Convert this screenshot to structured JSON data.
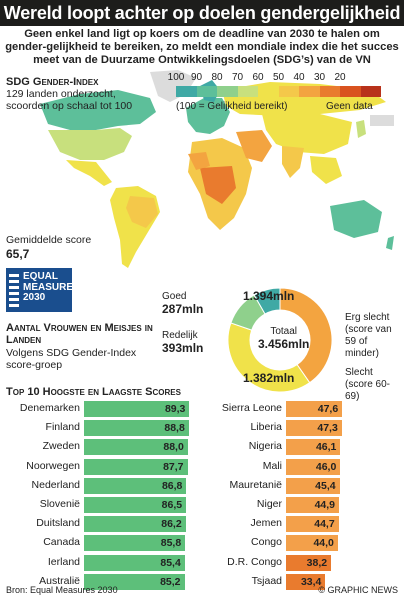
{
  "header": {
    "title": "Wereld loopt achter op doelen gendergelijkheid",
    "subtitle": "Geen enkel land ligt op koers om de deadline van 2030 te halen om gender-gelijkheid te bereiken, zo meldt een mondiale index die het succes meet van de Duurzame Ontwikkelingsdoelen (SDG’s) van de VN"
  },
  "map": {
    "heading": "SDG Gender-Index",
    "sub": "129 landen onderzocht, scoorden op schaal tot 100",
    "legend_ticks": [
      "100",
      "90",
      "80",
      "70",
      "60",
      "50",
      "40",
      "30",
      "20"
    ],
    "legend_colors": [
      "#3fa9a5",
      "#5dbf9a",
      "#8fd08c",
      "#c8e07d",
      "#f0e24a",
      "#f4c84a",
      "#f3a440",
      "#e97b2e",
      "#d9531f",
      "#b8321b"
    ],
    "legend_note": "(100 = Gelijkheid bereikt)",
    "nodata_label": "Geen data",
    "nodata_color": "#dcdcdc",
    "avg_label": "Gemiddelde score",
    "avg_value": "65,7"
  },
  "logo": {
    "line1": "EQUAL",
    "line2": "MEASURES",
    "line3": "2030"
  },
  "donut": {
    "heading": "Aantal Vrouwen en Meisjes in Landen",
    "sub": "Volgens SDG Gender-Index score-groep",
    "total_label": "Totaal",
    "total_value": "3.456mln",
    "segments": [
      {
        "label": "Erg slecht",
        "note": "(score van 59 of minder)",
        "value": "1.394mln",
        "amount": 1394,
        "color": "#f3a440"
      },
      {
        "label": "Slecht",
        "note": "(score 60-69)",
        "value": "1.382mln",
        "amount": 1382,
        "color": "#f0e24a"
      },
      {
        "label": "Redelijk",
        "note": "",
        "value": "393mln",
        "amount": 393,
        "color": "#8fd08c"
      },
      {
        "label": "Goed",
        "note": "",
        "value": "287mln",
        "amount": 287,
        "color": "#3fa9a5"
      }
    ]
  },
  "top10": {
    "heading": "Top 10 Hoogste en Laagste Scores",
    "highest": [
      {
        "name": "Denemarken",
        "score": "89,3",
        "v": 89.3
      },
      {
        "name": "Finland",
        "score": "88,8",
        "v": 88.8
      },
      {
        "name": "Zweden",
        "score": "88,0",
        "v": 88.0
      },
      {
        "name": "Noorwegen",
        "score": "87,7",
        "v": 87.7
      },
      {
        "name": "Nederland",
        "score": "86,8",
        "v": 86.8
      },
      {
        "name": "Slovenië",
        "score": "86,5",
        "v": 86.5
      },
      {
        "name": "Duitsland",
        "score": "86,2",
        "v": 86.2
      },
      {
        "name": "Canada",
        "score": "85,8",
        "v": 85.8
      },
      {
        "name": "Ierland",
        "score": "85,4",
        "v": 85.4
      },
      {
        "name": "Australië",
        "score": "85,2",
        "v": 85.2
      }
    ],
    "lowest": [
      {
        "name": "Sierra Leone",
        "score": "47,6",
        "v": 47.6
      },
      {
        "name": "Liberia",
        "score": "47,3",
        "v": 47.3
      },
      {
        "name": "Nigeria",
        "score": "46,1",
        "v": 46.1
      },
      {
        "name": "Mali",
        "score": "46,0",
        "v": 46.0
      },
      {
        "name": "Mauretanië",
        "score": "45,4",
        "v": 45.4
      },
      {
        "name": "Niger",
        "score": "44,9",
        "v": 44.9
      },
      {
        "name": "Jemen",
        "score": "44,7",
        "v": 44.7
      },
      {
        "name": "Congo",
        "score": "44,0",
        "v": 44.0
      },
      {
        "name": "D.R. Congo",
        "score": "38,2",
        "v": 38.2
      },
      {
        "name": "Tsjaad",
        "score": "33,4",
        "v": 33.4
      }
    ],
    "high_color": "#5dbf7a",
    "low_color": "#f3a04a",
    "lowest_color": "#e97b2e"
  },
  "footer": {
    "source": "Bron: Equal Measures 2030",
    "credit": "© GRAPHIC NEWS"
  }
}
